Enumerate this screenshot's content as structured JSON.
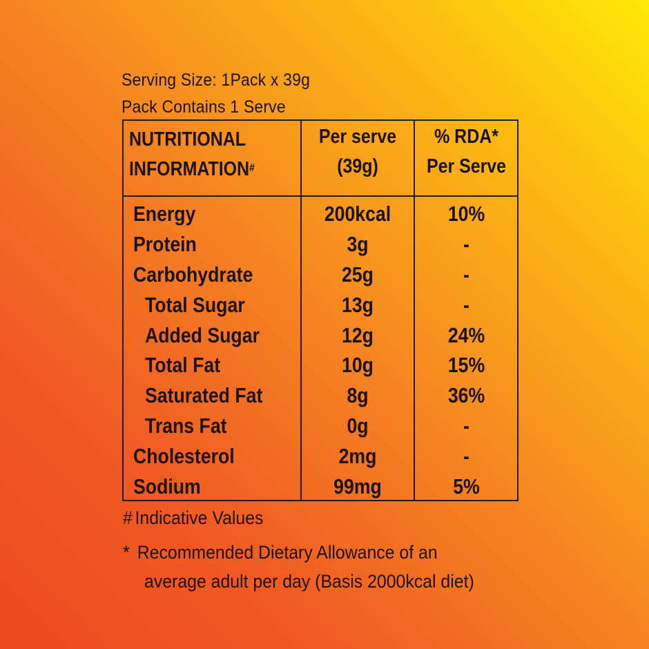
{
  "serving": {
    "size": "Serving Size: 1Pack x 39g",
    "pack": "Pack Contains 1 Serve"
  },
  "table": {
    "headers": {
      "nutrition_line1": "NUTRITIONAL",
      "nutrition_line2": "INFORMATION",
      "nutrition_mark": "#",
      "per_serve_line1": "Per serve",
      "per_serve_line2": "(39g)",
      "rda_line1": "% RDA*",
      "rda_line2": "Per Serve"
    },
    "rows": [
      {
        "name": "Energy",
        "value": "200kcal",
        "rda": "10%"
      },
      {
        "name": "Protein",
        "value": "3g",
        "rda": "-"
      },
      {
        "name": "Carbohydrate",
        "value": "25g",
        "rda": "-"
      },
      {
        "name": "Total Sugar",
        "value": "13g",
        "rda": "-"
      },
      {
        "name": "Added Sugar",
        "value": "12g",
        "rda": "24%"
      },
      {
        "name": "Total Fat",
        "value": "10g",
        "rda": "15%"
      },
      {
        "name": "Saturated Fat",
        "value": "8g",
        "rda": "36%"
      },
      {
        "name": "Trans Fat",
        "value": "0g",
        "rda": "-"
      },
      {
        "name": "Cholesterol",
        "value": "2mg",
        "rda": "-"
      },
      {
        "name": "Sodium",
        "value": "99mg",
        "rda": "5%"
      }
    ]
  },
  "notes": {
    "indicative_mark": "#",
    "indicative": "Indicative Values",
    "rda_mark": "*",
    "rda_line1": "Recommended Dietary Allowance of an",
    "rda_line2": "average adult per day (Basis 2000kcal diet)"
  },
  "colors": {
    "gradient_top_right": "#fdea05",
    "gradient_bottom_left": "#ed4a21",
    "text": "#1c1208"
  }
}
